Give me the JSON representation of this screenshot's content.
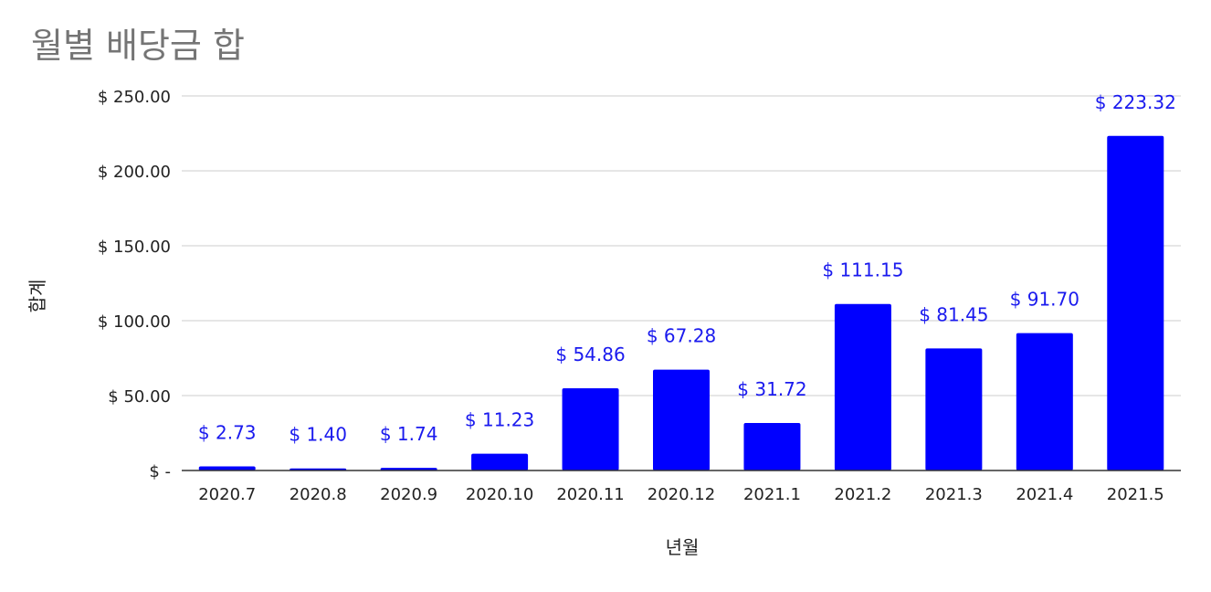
{
  "chart_data": {
    "type": "bar",
    "title": "월별 배당금 합",
    "xlabel": "년월",
    "ylabel": "합계",
    "categories": [
      "2020.7",
      "2020.8",
      "2020.9",
      "2020.10",
      "2020.11",
      "2020.12",
      "2021.1",
      "2021.2",
      "2021.3",
      "2021.4",
      "2021.5"
    ],
    "values": [
      2.73,
      1.4,
      1.74,
      11.23,
      54.86,
      67.28,
      31.72,
      111.15,
      81.45,
      91.7,
      223.32
    ],
    "data_labels": [
      "$ 2.73",
      "$ 1.40",
      "$ 1.74",
      "$ 11.23",
      "$ 54.86",
      "$ 67.28",
      "$ 31.72",
      "$ 111.15",
      "$ 81.45",
      "$ 91.70",
      "$ 223.32"
    ],
    "yticks": [
      0,
      50,
      100,
      150,
      200,
      250
    ],
    "ytick_labels": [
      "$ -",
      "$ 50.00",
      "$ 100.00",
      "$ 150.00",
      "$ 200.00",
      "$ 250.00"
    ],
    "ylim": [
      0,
      250
    ],
    "grid": true,
    "legend": "none",
    "colors": {
      "bar": "#0000ff",
      "data_label": "#1a1aee",
      "title": "#757575",
      "grid": "#cccccc",
      "axis": "#333333",
      "text": "#222222"
    }
  }
}
